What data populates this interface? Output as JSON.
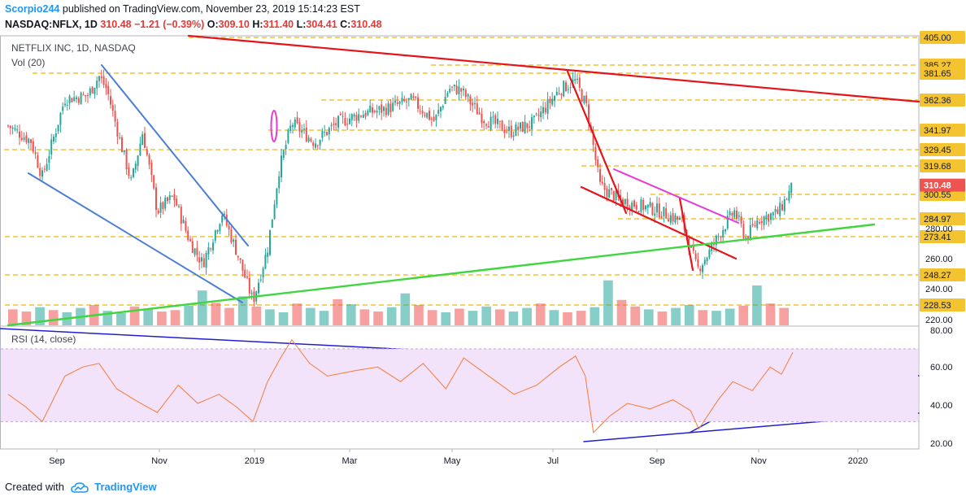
{
  "header": {
    "author": "Scorpio244",
    "published_text": "published on TradingView.com, November 23, 2019 15:14:23 EST"
  },
  "ohlc": {
    "symbol": "NASDAQ:NFLX, 1D",
    "last": "310.48",
    "change": "−1.21 (−0.39%)",
    "o_label": "O:",
    "o": "309.10",
    "h_label": "H:",
    "h": "311.40",
    "l_label": "L:",
    "l": "304.41",
    "c_label": "C:",
    "c": "310.48"
  },
  "legend": {
    "title": "NETFLIX INC, 1D, NASDAQ",
    "volume": "Vol (20)",
    "rsi": "RSI (14, close)"
  },
  "footer": {
    "created_with": "Created with",
    "brand": "TradingView"
  },
  "colors": {
    "up": "#26a69a",
    "down": "#ef5350",
    "trend_red": "#e5141b",
    "trend_blue": "#4a7ed6",
    "trend_green": "#3fd640",
    "trend_magenta": "#e53cd8",
    "dash_yellow": "#f4c430",
    "rsi_line": "#f57c3a",
    "rsi_band": "#f2e2fa",
    "rsi_trend": "#1f1fd1",
    "accent": "#2196f3"
  },
  "chart_data": [
    {
      "type": "candlestick",
      "title": "NETFLIX INC, 1D, NASDAQ",
      "ylim": [
        217,
        410
      ],
      "x_tick_labels": [
        "Sep",
        "Nov",
        "2019",
        "Mar",
        "May",
        "Jul",
        "Sep",
        "Nov",
        "2020"
      ],
      "price_levels": [
        "405.00",
        "385.27",
        "381.65",
        "362.36",
        "341.97",
        "329.45",
        "319.68",
        "300.55",
        "284.97",
        "273.41",
        "248.27",
        "228.53"
      ],
      "axis_ticks": [
        "280.00",
        "260.00",
        "240.00",
        "220.00"
      ],
      "last_price": "310.48",
      "price_path": [
        {
          "date": "2018-07-26",
          "close": 350
        },
        {
          "date": "2018-08-09",
          "close": 340
        },
        {
          "date": "2018-08-16",
          "close": 316
        },
        {
          "date": "2018-08-30",
          "close": 368
        },
        {
          "date": "2018-09-13",
          "close": 370
        },
        {
          "date": "2018-09-20",
          "close": 383
        },
        {
          "date": "2018-09-25",
          "close": 374
        },
        {
          "date": "2018-10-03",
          "close": 340
        },
        {
          "date": "2018-10-10",
          "close": 312
        },
        {
          "date": "2018-10-17",
          "close": 346
        },
        {
          "date": "2018-10-26",
          "close": 293
        },
        {
          "date": "2018-11-05",
          "close": 303
        },
        {
          "date": "2018-11-15",
          "close": 273
        },
        {
          "date": "2018-11-23",
          "close": 258
        },
        {
          "date": "2018-12-05",
          "close": 292
        },
        {
          "date": "2018-12-14",
          "close": 266
        },
        {
          "date": "2018-12-24",
          "close": 233
        },
        {
          "date": "2019-01-02",
          "close": 268
        },
        {
          "date": "2019-01-09",
          "close": 320
        },
        {
          "date": "2019-01-17",
          "close": 352
        },
        {
          "date": "2019-01-31",
          "close": 339
        },
        {
          "date": "2019-02-14",
          "close": 352
        },
        {
          "date": "2019-03-01",
          "close": 358
        },
        {
          "date": "2019-03-15",
          "close": 361
        },
        {
          "date": "2019-04-01",
          "close": 367
        },
        {
          "date": "2019-04-15",
          "close": 353
        },
        {
          "date": "2019-04-24",
          "close": 375
        },
        {
          "date": "2019-05-01",
          "close": 374
        },
        {
          "date": "2019-05-15",
          "close": 355
        },
        {
          "date": "2019-06-01",
          "close": 346
        },
        {
          "date": "2019-06-15",
          "close": 352
        },
        {
          "date": "2019-07-01",
          "close": 374
        },
        {
          "date": "2019-07-11",
          "close": 380
        },
        {
          "date": "2019-07-18",
          "close": 362
        },
        {
          "date": "2019-07-26",
          "close": 310
        },
        {
          "date": "2019-08-08",
          "close": 300
        },
        {
          "date": "2019-08-15",
          "close": 298
        },
        {
          "date": "2019-08-30",
          "close": 294
        },
        {
          "date": "2019-09-15",
          "close": 286
        },
        {
          "date": "2019-09-24",
          "close": 254
        },
        {
          "date": "2019-10-01",
          "close": 265
        },
        {
          "date": "2019-10-10",
          "close": 282
        },
        {
          "date": "2019-10-17",
          "close": 293
        },
        {
          "date": "2019-10-24",
          "close": 275
        },
        {
          "date": "2019-11-01",
          "close": 288
        },
        {
          "date": "2019-11-13",
          "close": 292
        },
        {
          "date": "2019-11-22",
          "close": 310
        }
      ]
    },
    {
      "type": "bar",
      "title": "Vol (20)",
      "series": [
        {
          "values": [
            22,
            19,
            25,
            21,
            18,
            24,
            28,
            20,
            17,
            26,
            23,
            19,
            21,
            27,
            48,
            31,
            24,
            40,
            26,
            22,
            18,
            30,
            24,
            20,
            36,
            29,
            22,
            19,
            25,
            44,
            28,
            21,
            18,
            23,
            20,
            26,
            22,
            19,
            24,
            30,
            21,
            18,
            20,
            25,
            62,
            35,
            26,
            22,
            19,
            24,
            28,
            21,
            20,
            23,
            27,
            55,
            30,
            24
          ]
        }
      ]
    },
    {
      "type": "line",
      "title": "RSI (14, close)",
      "ylim": [
        15,
        82
      ],
      "y_ticks": [
        "80.00",
        "60.00",
        "40.00",
        "20.00"
      ],
      "band": [
        30,
        70
      ],
      "x": [
        "2018-07-26",
        "2018-08-06",
        "2018-08-16",
        "2018-08-30",
        "2018-09-10",
        "2018-09-20",
        "2018-10-01",
        "2018-10-12",
        "2018-10-26",
        "2018-11-08",
        "2018-11-20",
        "2018-12-03",
        "2018-12-14",
        "2018-12-24",
        "2019-01-02",
        "2019-01-10",
        "2019-01-17",
        "2019-01-28",
        "2019-02-08",
        "2019-02-25",
        "2019-03-11",
        "2019-03-25",
        "2019-04-08",
        "2019-04-22",
        "2019-05-03",
        "2019-05-20",
        "2019-06-03",
        "2019-06-17",
        "2019-07-01",
        "2019-07-11",
        "2019-07-17",
        "2019-07-22",
        "2019-08-01",
        "2019-08-12",
        "2019-08-26",
        "2019-09-09",
        "2019-09-20",
        "2019-09-25",
        "2019-10-07",
        "2019-10-16",
        "2019-10-28",
        "2019-11-08",
        "2019-11-15",
        "2019-11-22"
      ],
      "values": [
        45,
        38,
        30,
        55,
        60,
        62,
        48,
        42,
        35,
        50,
        40,
        45,
        38,
        30,
        52,
        65,
        75,
        62,
        55,
        58,
        60,
        52,
        62,
        48,
        65,
        54,
        45,
        50,
        60,
        66,
        55,
        24,
        33,
        40,
        37,
        42,
        36,
        26,
        42,
        52,
        47,
        60,
        56,
        68
      ]
    }
  ]
}
